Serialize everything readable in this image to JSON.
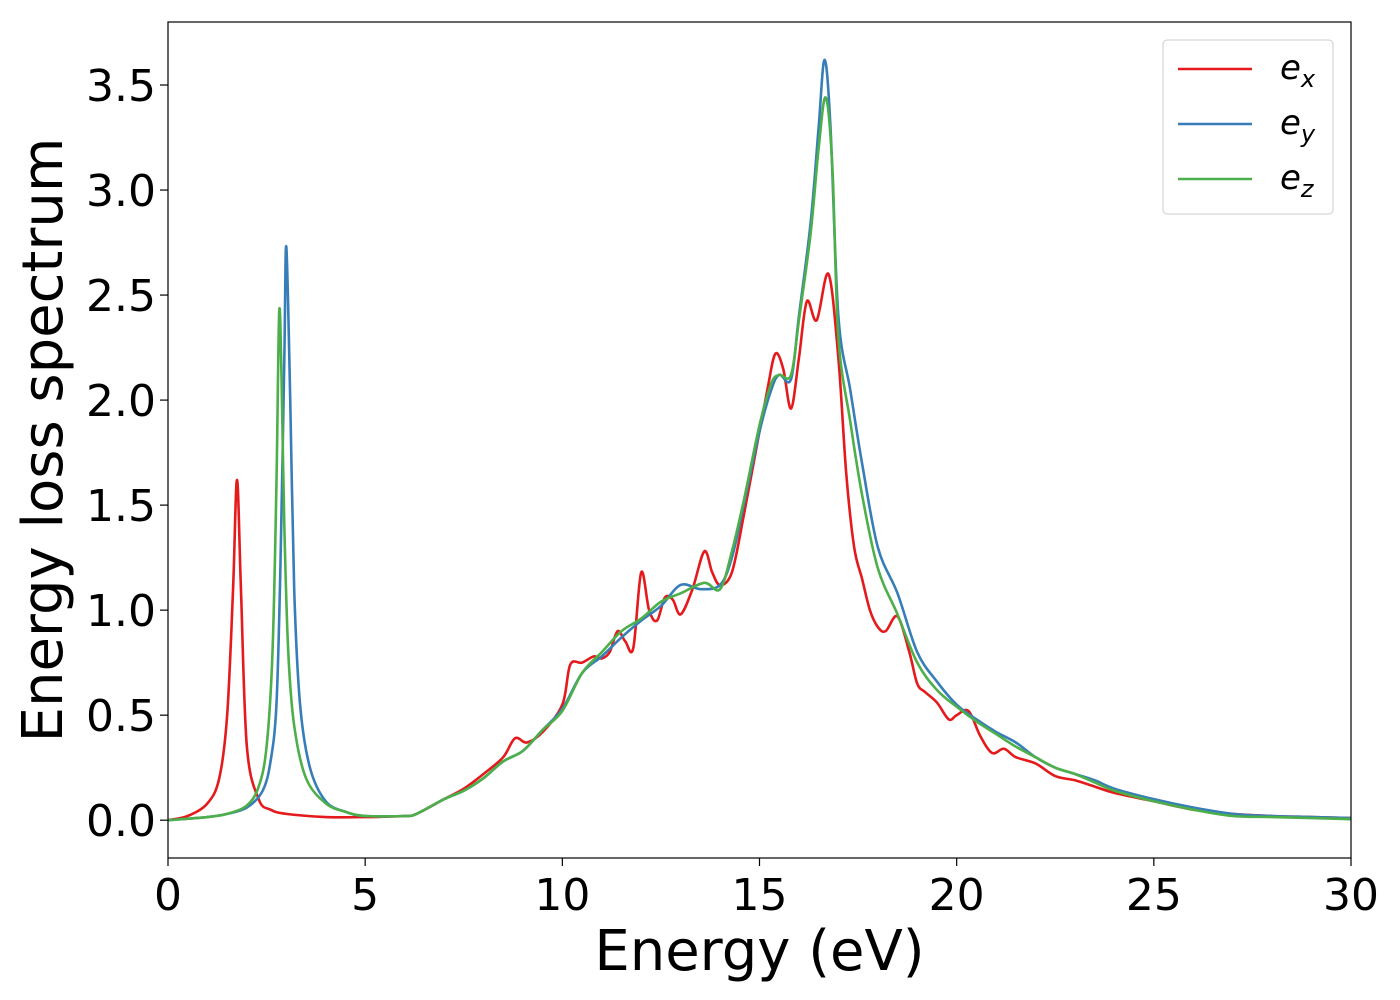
{
  "chart_data": {
    "type": "line",
    "xlabel": "Energy (eV)",
    "ylabel": "Energy loss spectrum",
    "xlim": [
      0,
      30
    ],
    "ylim": [
      -0.18,
      3.8
    ],
    "xticks": [
      0,
      5,
      10,
      15,
      20,
      25,
      30
    ],
    "xtick_labels": [
      "0",
      "5",
      "10",
      "15",
      "20",
      "25",
      "30"
    ],
    "yticks": [
      0.0,
      0.5,
      1.0,
      1.5,
      2.0,
      2.5,
      3.0,
      3.5
    ],
    "ytick_labels": [
      "0.0",
      "0.5",
      "1.0",
      "1.5",
      "2.0",
      "2.5",
      "3.0",
      "3.5"
    ],
    "grid": false,
    "legend_position": "top-right",
    "series": [
      {
        "name": "e_x",
        "legend_base": "e",
        "legend_sub": "x",
        "color": "#e41a1c",
        "x": [
          0.0,
          0.5,
          1.0,
          1.3,
          1.5,
          1.65,
          1.75,
          1.85,
          2.0,
          2.3,
          2.6,
          3.0,
          4.0,
          5.0,
          6.0,
          6.3,
          7.0,
          7.5,
          8.0,
          8.5,
          8.8,
          9.1,
          9.5,
          10.0,
          10.2,
          10.5,
          10.8,
          11.0,
          11.2,
          11.4,
          11.6,
          11.8,
          12.0,
          12.2,
          12.4,
          12.6,
          12.8,
          13.0,
          13.3,
          13.6,
          13.8,
          14.0,
          14.3,
          14.6,
          14.9,
          15.2,
          15.4,
          15.6,
          15.8,
          16.0,
          16.2,
          16.45,
          16.75,
          17.0,
          17.2,
          17.4,
          17.6,
          17.8,
          18.0,
          18.2,
          18.5,
          18.8,
          19.0,
          19.2,
          19.5,
          19.8,
          20.0,
          20.3,
          20.6,
          20.9,
          21.2,
          21.5,
          22.0,
          22.5,
          23.0,
          23.5,
          24.0,
          25.0,
          26.0,
          27.0,
          28.0,
          29.0,
          30.0
        ],
        "y": [
          0.0,
          0.02,
          0.08,
          0.2,
          0.5,
          1.1,
          1.62,
          1.1,
          0.35,
          0.1,
          0.05,
          0.03,
          0.015,
          0.015,
          0.02,
          0.03,
          0.1,
          0.15,
          0.22,
          0.3,
          0.39,
          0.37,
          0.42,
          0.55,
          0.74,
          0.75,
          0.78,
          0.77,
          0.8,
          0.9,
          0.85,
          0.82,
          1.18,
          1.0,
          0.95,
          1.06,
          1.05,
          0.98,
          1.1,
          1.28,
          1.18,
          1.12,
          1.18,
          1.45,
          1.75,
          2.05,
          2.22,
          2.15,
          1.96,
          2.2,
          2.47,
          2.38,
          2.6,
          2.2,
          1.65,
          1.3,
          1.15,
          1.0,
          0.92,
          0.9,
          0.97,
          0.8,
          0.65,
          0.61,
          0.56,
          0.48,
          0.5,
          0.52,
          0.4,
          0.32,
          0.34,
          0.3,
          0.27,
          0.21,
          0.19,
          0.16,
          0.13,
          0.09,
          0.05,
          0.03,
          0.02,
          0.015,
          0.01
        ]
      },
      {
        "name": "e_y",
        "legend_base": "e",
        "legend_sub": "y",
        "color": "#377eb8",
        "x": [
          0.0,
          1.0,
          1.5,
          2.0,
          2.4,
          2.6,
          2.75,
          2.85,
          2.95,
          3.0,
          3.1,
          3.2,
          3.35,
          3.6,
          4.0,
          4.5,
          5.0,
          6.0,
          6.3,
          7.0,
          7.5,
          8.0,
          8.5,
          9.0,
          9.5,
          10.0,
          10.5,
          11.0,
          11.5,
          12.0,
          12.5,
          13.0,
          13.5,
          14.0,
          14.3,
          14.6,
          15.0,
          15.3,
          15.5,
          15.8,
          16.0,
          16.3,
          16.5,
          16.65,
          16.8,
          17.0,
          17.3,
          17.6,
          18.0,
          18.5,
          19.0,
          19.5,
          20.0,
          20.5,
          21.0,
          21.5,
          22.0,
          22.5,
          23.0,
          23.5,
          24.0,
          25.0,
          26.0,
          27.0,
          28.0,
          29.0,
          30.0
        ],
        "y": [
          0.0,
          0.015,
          0.03,
          0.06,
          0.14,
          0.28,
          0.55,
          1.2,
          2.2,
          2.73,
          2.0,
          1.1,
          0.55,
          0.25,
          0.09,
          0.04,
          0.02,
          0.02,
          0.03,
          0.1,
          0.14,
          0.2,
          0.28,
          0.33,
          0.43,
          0.53,
          0.7,
          0.78,
          0.87,
          0.95,
          1.02,
          1.12,
          1.1,
          1.12,
          1.25,
          1.5,
          1.85,
          2.05,
          2.12,
          2.1,
          2.4,
          2.85,
          3.3,
          3.62,
          3.3,
          2.4,
          2.05,
          1.7,
          1.3,
          1.08,
          0.8,
          0.66,
          0.55,
          0.48,
          0.42,
          0.37,
          0.3,
          0.25,
          0.22,
          0.19,
          0.15,
          0.1,
          0.06,
          0.03,
          0.02,
          0.015,
          0.01
        ]
      },
      {
        "name": "e_z",
        "legend_base": "e",
        "legend_sub": "z",
        "color": "#4daf4a",
        "x": [
          0.0,
          1.0,
          1.5,
          2.0,
          2.3,
          2.5,
          2.65,
          2.75,
          2.82,
          2.88,
          2.95,
          3.05,
          3.2,
          3.5,
          4.0,
          4.5,
          5.0,
          6.0,
          6.3,
          7.0,
          7.5,
          8.0,
          8.5,
          9.0,
          9.5,
          10.0,
          10.5,
          11.0,
          11.5,
          12.0,
          12.5,
          13.0,
          13.6,
          14.0,
          14.3,
          14.6,
          15.0,
          15.3,
          15.5,
          15.8,
          16.0,
          16.3,
          16.5,
          16.68,
          16.85,
          17.0,
          17.3,
          17.6,
          18.0,
          18.5,
          19.0,
          19.5,
          20.0,
          20.5,
          21.0,
          21.5,
          22.0,
          22.5,
          23.0,
          23.5,
          24.0,
          25.0,
          26.0,
          27.0,
          28.0,
          29.0,
          30.0
        ],
        "y": [
          0.0,
          0.015,
          0.03,
          0.07,
          0.16,
          0.35,
          0.8,
          1.6,
          2.42,
          2.1,
          1.4,
          0.8,
          0.45,
          0.2,
          0.08,
          0.04,
          0.02,
          0.02,
          0.03,
          0.1,
          0.14,
          0.2,
          0.28,
          0.33,
          0.43,
          0.52,
          0.7,
          0.8,
          0.9,
          0.96,
          1.04,
          1.08,
          1.13,
          1.1,
          1.28,
          1.52,
          1.88,
          2.08,
          2.12,
          2.12,
          2.38,
          2.8,
          3.2,
          3.44,
          3.1,
          2.3,
          1.9,
          1.55,
          1.2,
          0.98,
          0.75,
          0.62,
          0.54,
          0.47,
          0.41,
          0.35,
          0.3,
          0.25,
          0.22,
          0.18,
          0.14,
          0.09,
          0.05,
          0.02,
          0.015,
          0.01,
          0.005
        ]
      }
    ]
  }
}
